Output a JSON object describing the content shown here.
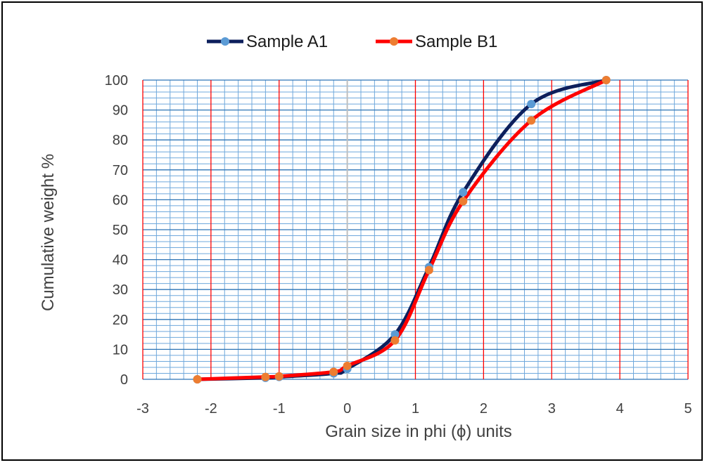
{
  "chart_data": {
    "type": "line",
    "title": "",
    "xlabel": "Grain size in phi (ϕ) units",
    "ylabel": "Cumulative weight  %",
    "xlim": [
      -3,
      5
    ],
    "ylim": [
      0,
      100
    ],
    "x_ticks": [
      "-3",
      "-2",
      "-1",
      "0",
      "1",
      "2",
      "3",
      "4",
      "5"
    ],
    "y_ticks": [
      "0",
      "10",
      "20",
      "30",
      "40",
      "50",
      "60",
      "70",
      "80",
      "90",
      "100"
    ],
    "grid": true,
    "legend": "top",
    "series": [
      {
        "name": "Sample A1",
        "color": "#0d1f5c",
        "marker_color": "#5b9bd5",
        "x": [
          -2.2,
          -1.2,
          -1.0,
          -0.2,
          0.0,
          0.7,
          1.2,
          1.7,
          2.7,
          3.8
        ],
        "y": [
          0,
          0.5,
          0.8,
          2,
          3.5,
          15,
          37.5,
          62.5,
          92,
          100
        ]
      },
      {
        "name": "Sample B1",
        "color": "#ff0000",
        "marker_color": "#ed7d31",
        "x": [
          -2.2,
          -1.2,
          -1.0,
          -0.2,
          0.0,
          0.7,
          1.2,
          1.7,
          2.7,
          3.8
        ],
        "y": [
          0,
          0.8,
          1,
          2.5,
          4.5,
          13,
          36.5,
          59.5,
          86.5,
          100
        ]
      }
    ]
  }
}
